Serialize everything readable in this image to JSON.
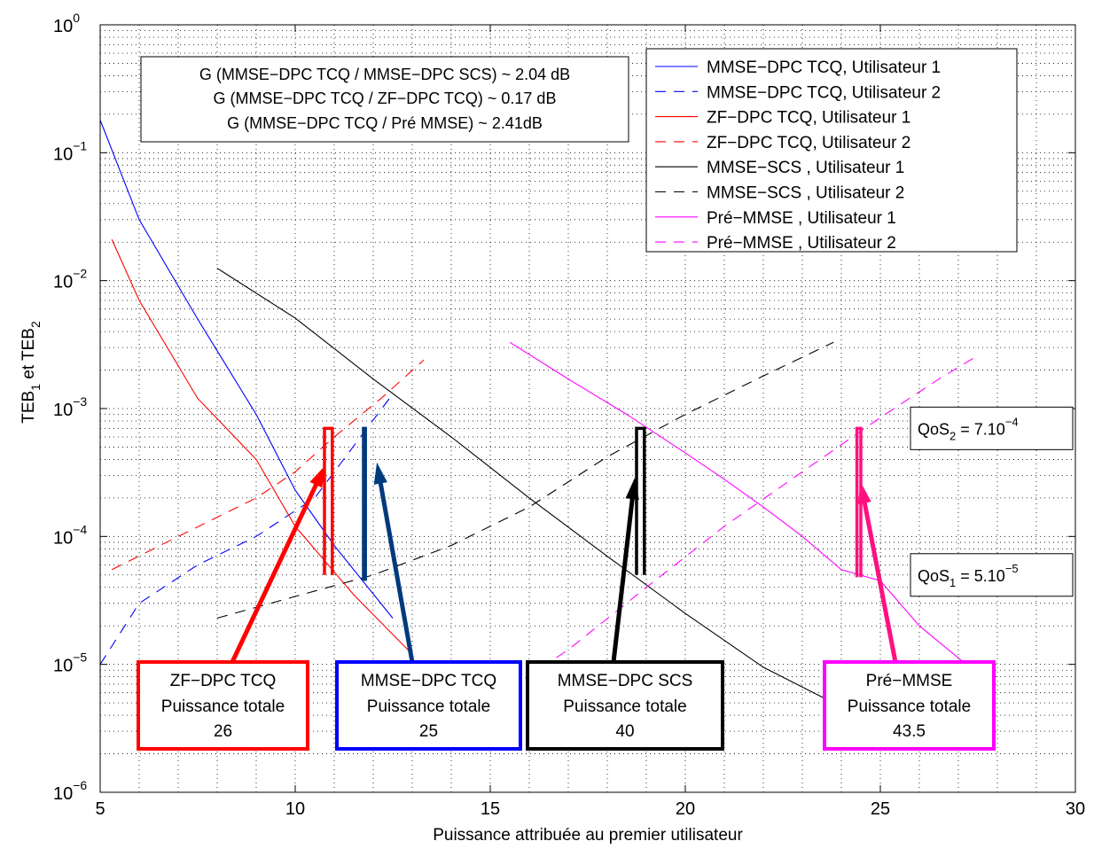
{
  "chart_data": {
    "type": "line",
    "title": "",
    "xlabel": "Puissance attribuée au premier utilisateur",
    "ylabel": "TEB_1 et TEB_2",
    "ylabel_parts": {
      "main1": "TEB",
      "sub1": "1",
      "mid": " et TEB",
      "sub2": "2"
    },
    "xlim": [
      5,
      30
    ],
    "ylim": [
      1e-06,
      1
    ],
    "yscale": "log",
    "grid": true,
    "legend_position": "top-right",
    "x_ticks": [
      "5",
      "10",
      "15",
      "20",
      "25",
      "30"
    ],
    "y_ticks": [
      {
        "base": "10",
        "exp": "0"
      },
      {
        "base": "10",
        "exp": "−1"
      },
      {
        "base": "10",
        "exp": "−2"
      },
      {
        "base": "10",
        "exp": "−3"
      },
      {
        "base": "10",
        "exp": "−4"
      },
      {
        "base": "10",
        "exp": "−5"
      },
      {
        "base": "10",
        "exp": "−6"
      }
    ],
    "series": [
      {
        "name": "MMSE−DPC TCQ, Utilisateur 1",
        "color": "#0000ff",
        "dash": "solid",
        "x": [
          5,
          6,
          7.5,
          9,
          10,
          11,
          12.5
        ],
        "y": [
          0.18,
          0.03,
          0.005,
          0.0009,
          0.00023,
          8.5e-05,
          2.3e-05
        ]
      },
      {
        "name": "MMSE−DPC TCQ, Utilisateur 2",
        "color": "#0000ff",
        "dash": "dashed",
        "x": [
          5,
          6,
          7.5,
          9,
          10.5,
          12.5
        ],
        "y": [
          1e-05,
          3e-05,
          6e-05,
          0.0001,
          0.0002,
          0.0013
        ]
      },
      {
        "name": "ZF−DPC TCQ, Utilisateur 1",
        "color": "#ff0000",
        "dash": "solid",
        "x": [
          5.3,
          6,
          7.5,
          9,
          10,
          11.5,
          13
        ],
        "y": [
          0.021,
          0.007,
          0.0012,
          0.0004,
          0.00012,
          3.5e-05,
          1.2e-05
        ]
      },
      {
        "name": "ZF−DPC TCQ, Utilisateur 2",
        "color": "#ff0000",
        "dash": "dashed",
        "x": [
          5.3,
          7,
          9,
          10,
          11,
          12.2,
          13.3
        ],
        "y": [
          5.5e-05,
          0.0001,
          0.0002,
          0.00032,
          0.0006,
          0.0012,
          0.0024
        ]
      },
      {
        "name": "MMSE−SCS , Utilisateur 1",
        "color": "#000000",
        "dash": "solid",
        "x": [
          8,
          10,
          12,
          14,
          16,
          18,
          20,
          22,
          23.8
        ],
        "y": [
          0.0125,
          0.0051,
          0.0017,
          0.0006,
          0.0002,
          7e-05,
          2.5e-05,
          9.5e-06,
          5e-06
        ]
      },
      {
        "name": "MMSE−SCS , Utilisateur 2",
        "color": "#000000",
        "dash": "dashed",
        "x": [
          8,
          10,
          12,
          14,
          16,
          18,
          20,
          22,
          23.8
        ],
        "y": [
          2.3e-05,
          3.4e-05,
          5e-05,
          8.5e-05,
          0.00017,
          0.00042,
          0.0009,
          0.0018,
          0.0033
        ]
      },
      {
        "name": "Pré−MMSE , Utilisateur 1",
        "color": "#ff00ff",
        "dash": "solid",
        "x": [
          15.5,
          17,
          18.5,
          20,
          21,
          22,
          23,
          24,
          25,
          26,
          27.2
        ],
        "y": [
          0.0033,
          0.0017,
          0.0009,
          0.00045,
          0.00028,
          0.00017,
          0.0001,
          5.5e-05,
          4.5e-05,
          2e-05,
          1e-05
        ]
      },
      {
        "name": "Pré−MMSE , Utilisateur 2",
        "color": "#ff00ff",
        "dash": "dashed",
        "x": [
          15.5,
          17,
          19,
          21,
          23,
          25,
          26.5,
          27.5
        ],
        "y": [
          6.5e-06,
          1.3e-05,
          4e-05,
          0.00012,
          0.00032,
          0.00085,
          0.0017,
          0.0026
        ]
      }
    ],
    "gain_box": [
      "G (MMSE−DPC TCQ / MMSE−DPC SCS) ~ 2.04 dB",
      "G (MMSE−DPC TCQ / ZF−DPC TCQ) ~ 0.17 dB",
      "G (MMSE−DPC TCQ / Pré MMSE) ~ 2.41dB"
    ],
    "qos": [
      {
        "label": "QoS",
        "sub": "2",
        "eq": " = 7.10",
        "sup": "−4",
        "value": 0.0007
      },
      {
        "label": "QoS",
        "sub": "1",
        "eq": " = 5.10",
        "sup": "−5",
        "value": 5e-05
      }
    ],
    "annotations": [
      {
        "name": "ZF−DPC TCQ",
        "line2": "Puissance totale",
        "value": "26",
        "color": "#ff0000",
        "marker": {
          "x1": 10.75,
          "x2": 10.95,
          "ylow": 5e-05,
          "yhigh": 0.0007
        },
        "arrow_tip": {
          "x": 10.75,
          "y": 0.00035
        }
      },
      {
        "name": "MMSE−DPC TCQ",
        "line2": "Puissance totale",
        "value": "25",
        "color": "#0000ff",
        "arrow_color": "#003a7c",
        "marker": {
          "x1": 11.75,
          "x2": 11.8,
          "ylow": 4.5e-05,
          "yhigh": 0.0007
        },
        "arrow_tip": {
          "x": 12.1,
          "y": 0.00037
        }
      },
      {
        "name": "MMSE−DPC SCS",
        "line2": "Puissance totale",
        "value": "40",
        "color": "#000000",
        "marker": {
          "x1": 18.75,
          "x2": 18.95,
          "ylow": 5e-05,
          "yhigh": 0.0007
        },
        "arrow_tip": {
          "x": 18.7,
          "y": 0.00028
        }
      },
      {
        "name": "Pré−MMSE",
        "line2": "Puissance totale",
        "value": "43.5",
        "color": "#ff00ff",
        "arrow_color": "#ff1080",
        "marker": {
          "x1": 24.4,
          "x2": 24.5,
          "ylow": 4.8e-05,
          "yhigh": 0.0007
        },
        "arrow_tip": {
          "x": 24.5,
          "y": 0.00026
        }
      }
    ]
  }
}
